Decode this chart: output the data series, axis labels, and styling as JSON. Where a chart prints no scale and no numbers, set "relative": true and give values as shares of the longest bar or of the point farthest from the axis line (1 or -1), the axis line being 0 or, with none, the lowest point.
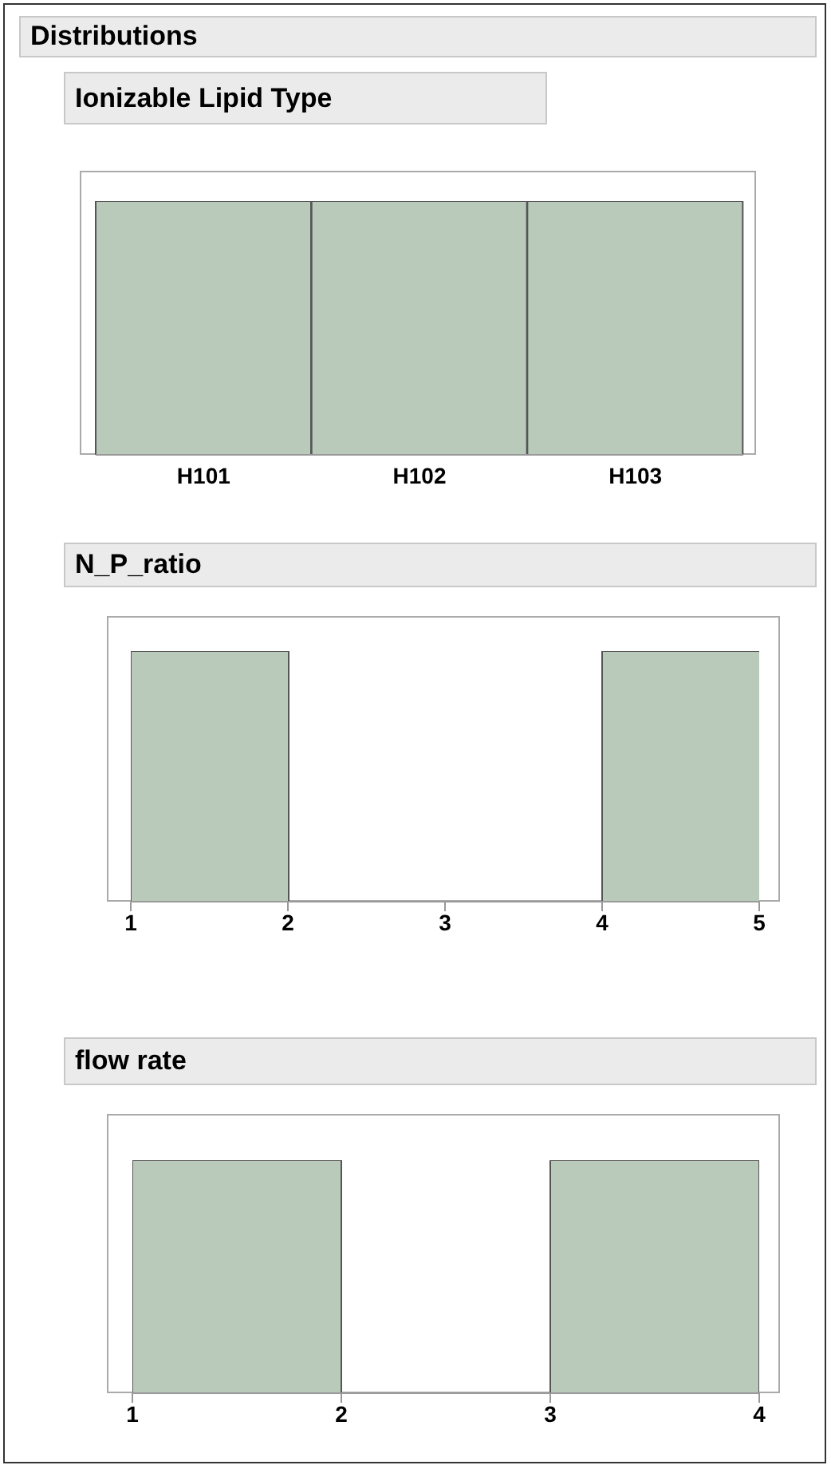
{
  "chart_data": [
    {
      "type": "bar",
      "title": "Ionizable Lipid Type",
      "annotations": [
        "Distributions"
      ],
      "categories": [
        "H101",
        "H102",
        "H103"
      ],
      "values": [
        1,
        1,
        1
      ],
      "relative": true,
      "color": "#b9cabb",
      "grid": false,
      "legend": false
    },
    {
      "type": "bar",
      "title": "N_P_ratio",
      "x": [
        1.5,
        2.5,
        3.5,
        4.5
      ],
      "values": [
        1,
        0,
        0,
        1
      ],
      "relative": true,
      "color": "#b9cabb",
      "xlim": [
        1,
        5
      ],
      "xticks": [
        1,
        2,
        3,
        4,
        5
      ],
      "grid": false,
      "legend": false
    },
    {
      "type": "bar",
      "title": "flow rate",
      "x": [
        1.5,
        2.5,
        3.5
      ],
      "values": [
        1,
        0,
        1
      ],
      "relative": true,
      "color": "#b9cabb",
      "xlim": [
        1,
        4
      ],
      "xticks": [
        1,
        2,
        3,
        4
      ],
      "grid": false,
      "legend": false
    }
  ]
}
